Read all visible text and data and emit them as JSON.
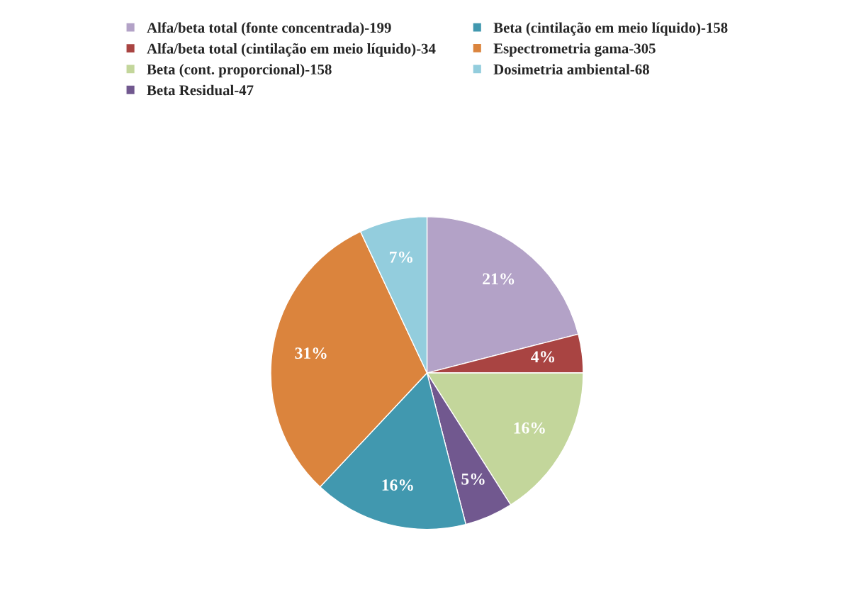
{
  "chart_data": {
    "type": "pie",
    "categories": [
      "Alfa/beta total (fonte concentrada)-199",
      "Alfa/beta total (cintilação em meio líquido)-34",
      "Beta (cont. proporcional)-158",
      "Beta Residual-47",
      "Beta (cintilação em meio líquido)-158",
      "Espectrometria gama-305",
      "Dosimetria ambiental-68"
    ],
    "values": [
      21,
      4,
      16,
      5,
      16,
      31,
      7
    ],
    "value_labels": [
      "21%",
      "4%",
      "16%",
      "5%",
      "16%",
      "31%",
      "7%"
    ],
    "colors": [
      "#b3a2c7",
      "#a94442",
      "#c3d69b",
      "#71588f",
      "#4198af",
      "#db843d",
      "#93cddd"
    ],
    "legend": "top"
  }
}
